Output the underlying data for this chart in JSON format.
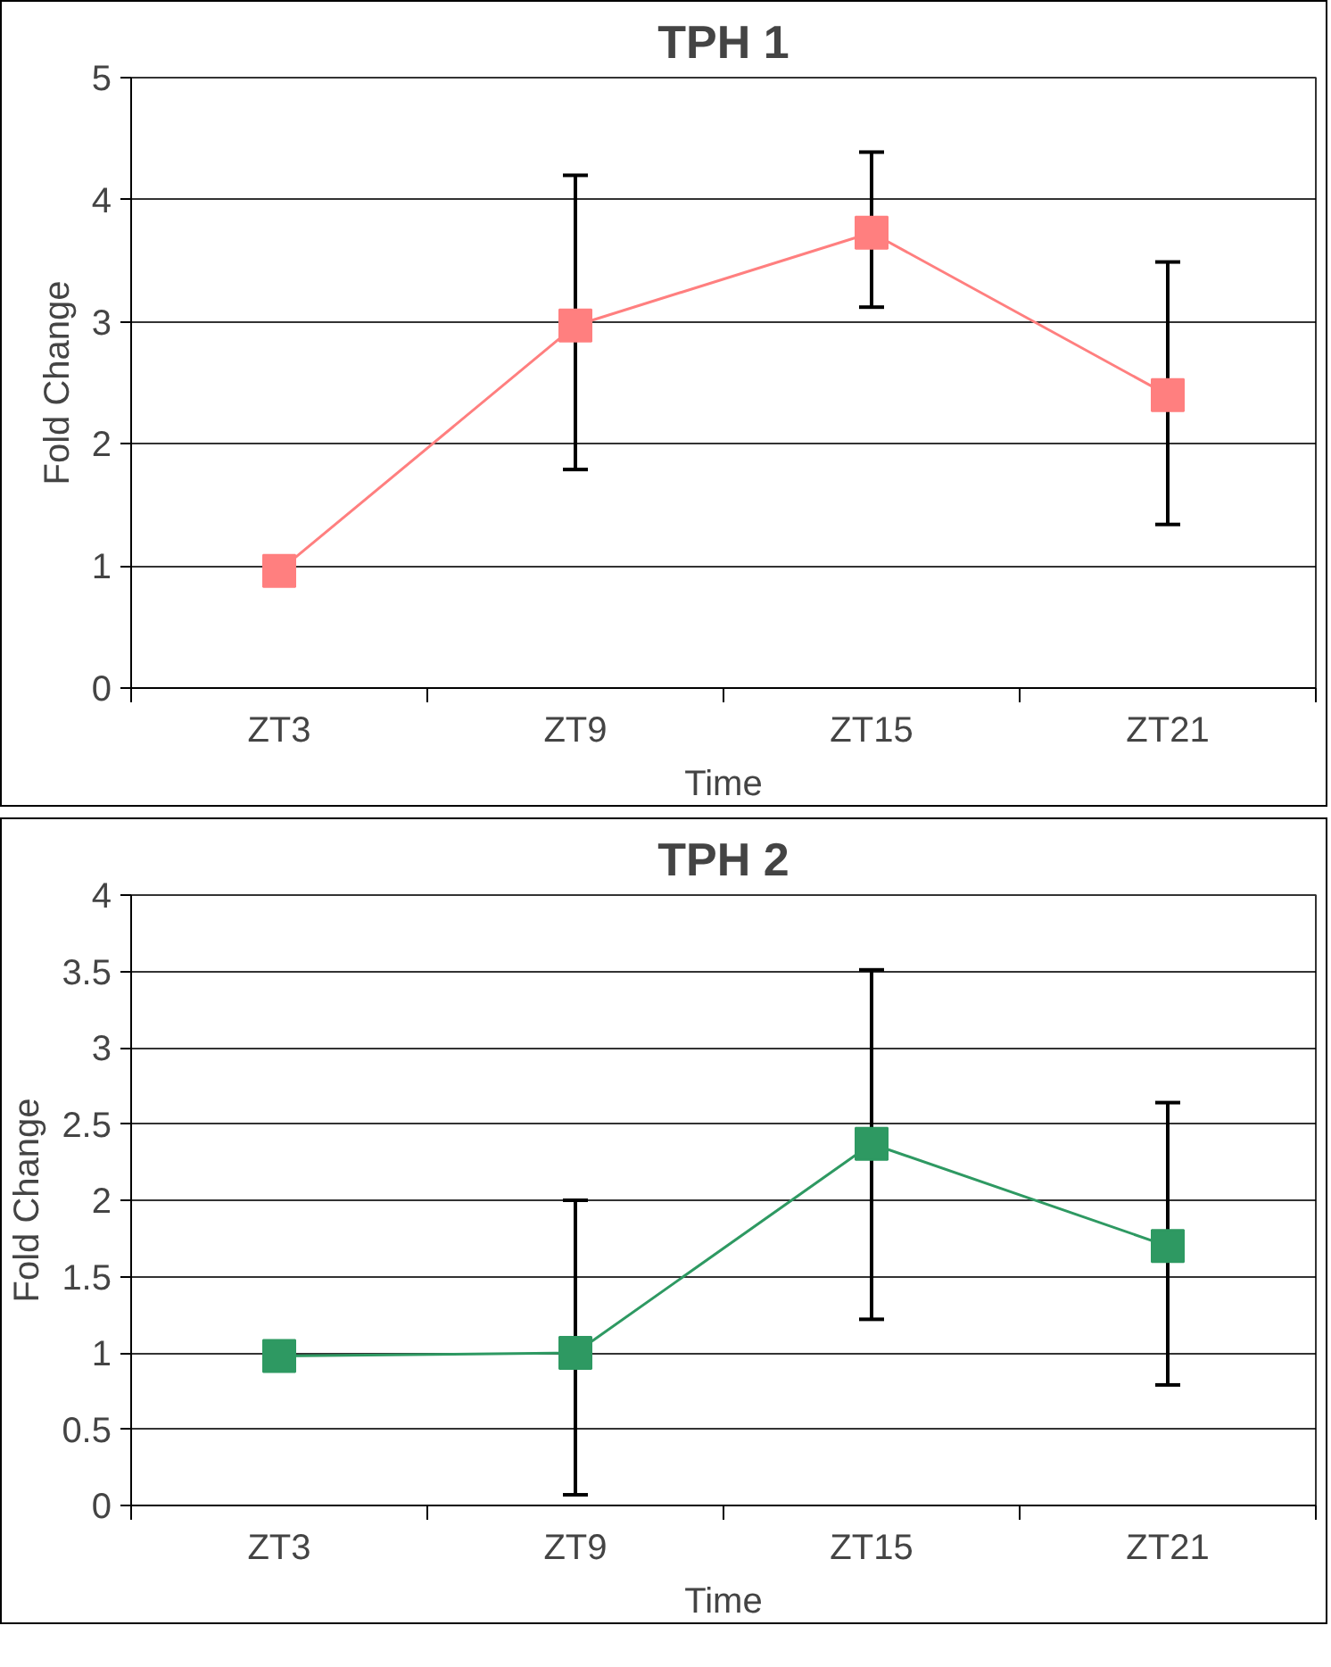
{
  "chart_data": [
    {
      "type": "line",
      "title": "TPH 1",
      "xlabel": "Time",
      "ylabel": "Fold Change",
      "categories": [
        "ZT3",
        "ZT9",
        "ZT15",
        "ZT21"
      ],
      "series": [
        {
          "color": "#ff7f7f",
          "values": [
            0.96,
            2.97,
            3.73,
            2.4
          ],
          "errors": [
            null,
            [
              1.79,
              4.2
            ],
            [
              3.12,
              4.39
            ],
            [
              1.34,
              3.49
            ]
          ]
        }
      ],
      "ylim": [
        0,
        5
      ],
      "yticks": [
        0,
        1,
        2,
        3,
        4,
        5
      ],
      "grid": "y",
      "marker": "square",
      "line_style": "solid"
    },
    {
      "type": "line",
      "title": "TPH 2",
      "xlabel": "Time",
      "ylabel": "Fold Change",
      "categories": [
        "ZT3",
        "ZT9",
        "ZT15",
        "ZT21"
      ],
      "series": [
        {
          "color": "#2e9962",
          "values": [
            0.98,
            1.0,
            2.37,
            1.7
          ],
          "errors": [
            null,
            [
              0.07,
              2.0
            ],
            [
              1.22,
              3.51
            ],
            [
              0.79,
              2.64
            ]
          ]
        }
      ],
      "ylim": [
        0,
        4
      ],
      "yticks": [
        0,
        0.5,
        1,
        1.5,
        2,
        2.5,
        3,
        3.5,
        4
      ],
      "grid": "y",
      "marker": "square",
      "line_style": "solid"
    }
  ]
}
